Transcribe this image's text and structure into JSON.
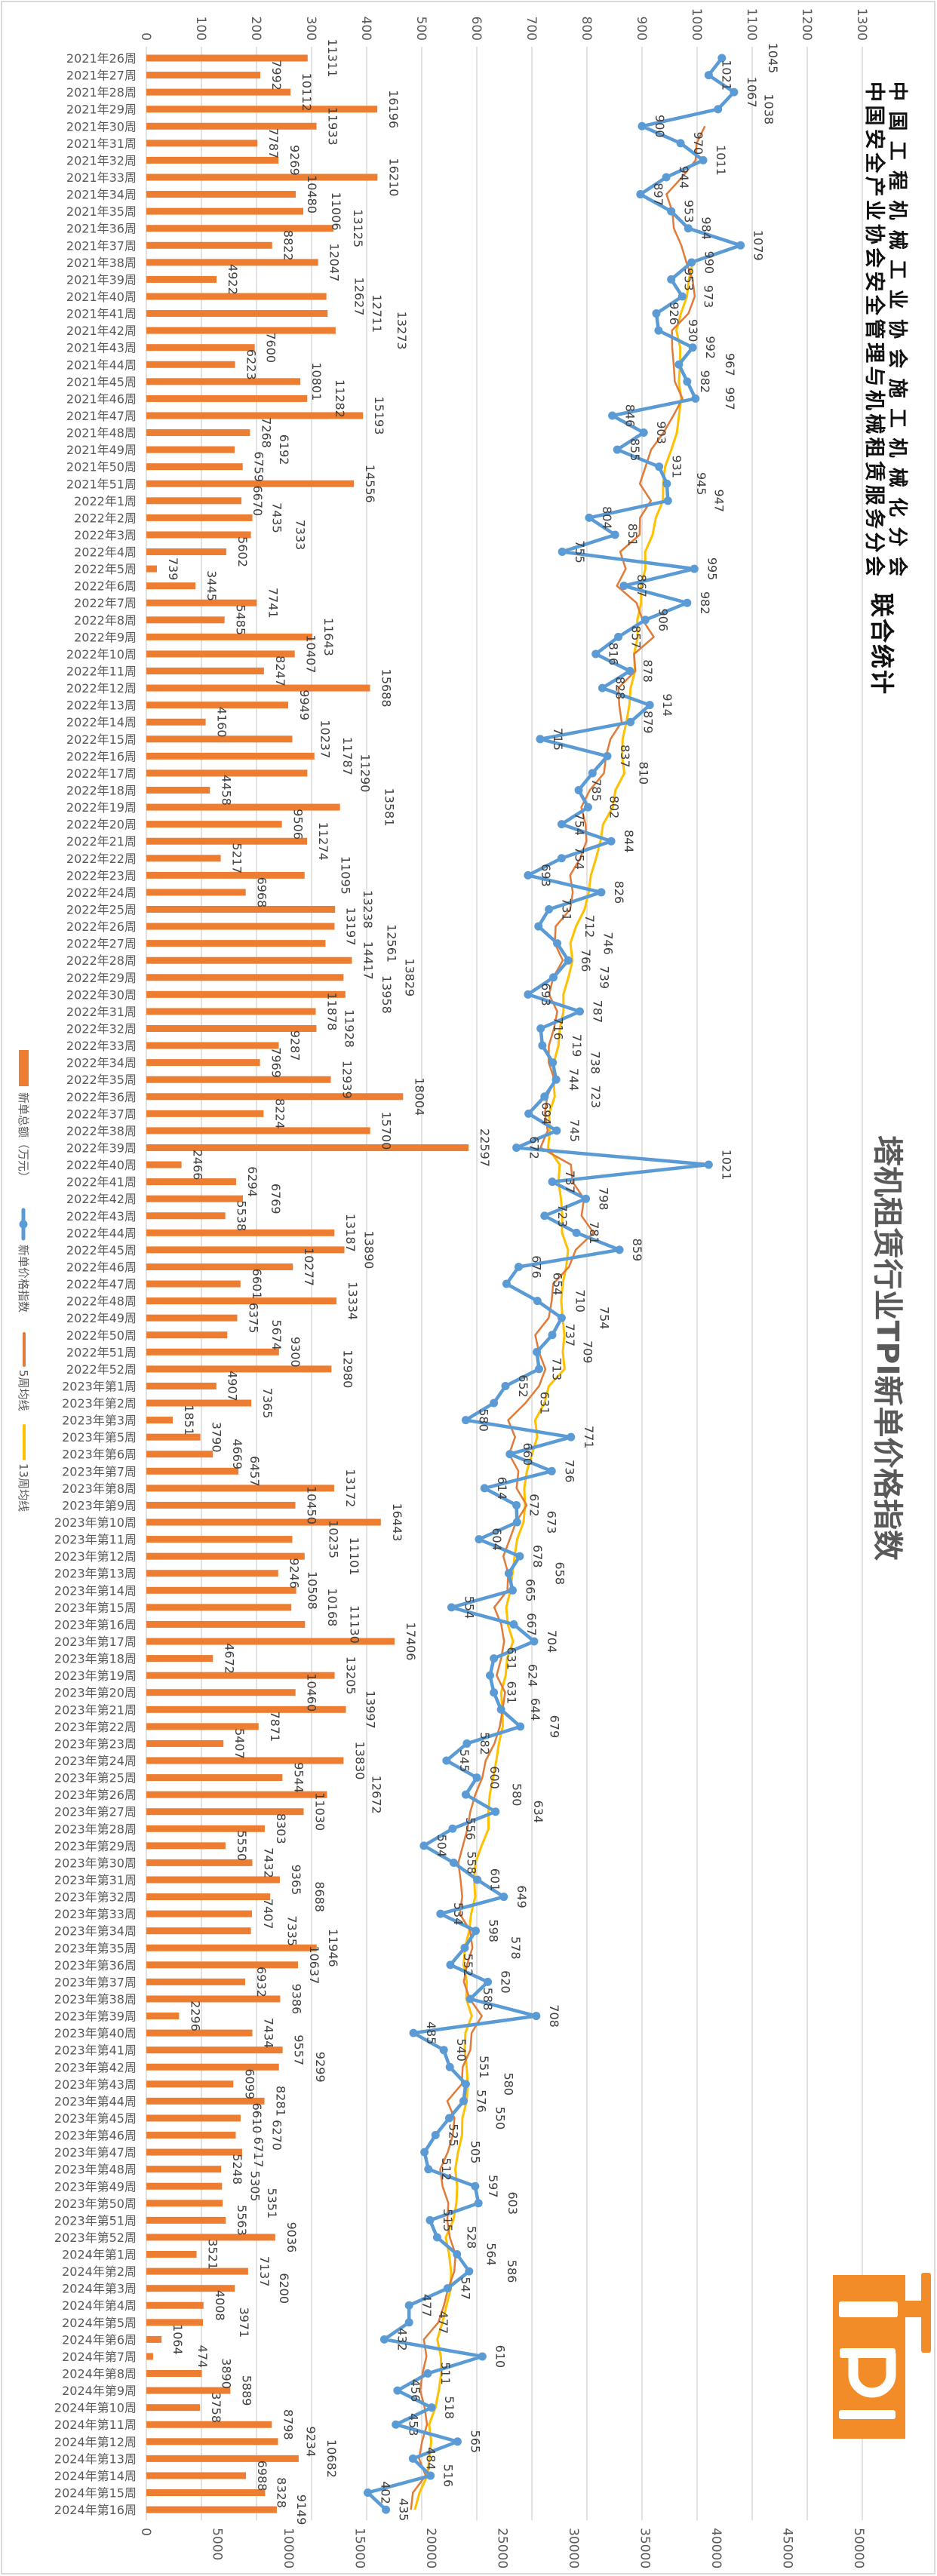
{
  "header": {
    "org_line_1": "中国工程机械工业协会施工机械化分会",
    "org_line_2": "中国安全产业协会安全管理与机械租赁服务分会",
    "joint_label": "联合统计"
  },
  "logo": {
    "text": "TPI",
    "color": "#F28C28"
  },
  "chart_data": {
    "type": "bar+line",
    "orientation": "rotated 90° clockwise",
    "title": "塔机租赁行业TPI新单价格指数",
    "grid": true,
    "legend_position": "left",
    "index_axis": {
      "range": [
        0,
        1300
      ],
      "ticks": [
        0,
        100,
        200,
        300,
        400,
        500,
        600,
        700,
        800,
        900,
        1000,
        1100,
        1200,
        1300
      ]
    },
    "amount_axis": {
      "range": [
        0,
        50000
      ],
      "ticks": [
        0,
        5000,
        10000,
        15000,
        20000,
        25000,
        30000,
        35000,
        40000,
        45000,
        50000
      ]
    },
    "categories": [
      "2021年26周",
      "2021年27周",
      "2021年28周",
      "2021年29周",
      "2021年30周",
      "2021年31周",
      "2021年32周",
      "2021年33周",
      "2021年34周",
      "2021年35周",
      "2021年36周",
      "2021年37周",
      "2021年38周",
      "2021年39周",
      "2021年40周",
      "2021年41周",
      "2021年42周",
      "2021年43周",
      "2021年44周",
      "2021年45周",
      "2021年46周",
      "2021年47周",
      "2021年48周",
      "2021年49周",
      "2021年50周",
      "2021年51周",
      "2022年1周",
      "2022年2周",
      "2022年3周",
      "2022年4周",
      "2022年5周",
      "2022年6周",
      "2022年7周",
      "2022年8周",
      "2022年9周",
      "2022年10周",
      "2022年11周",
      "2022年12周",
      "2022年13周",
      "2022年14周",
      "2022年15周",
      "2022年16周",
      "2022年17周",
      "2022年18周",
      "2022年19周",
      "2022年20周",
      "2022年21周",
      "2022年22周",
      "2022年23周",
      "2022年24周",
      "2022年25周",
      "2022年26周",
      "2022年27周",
      "2022年28周",
      "2022年29周",
      "2022年30周",
      "2022年31周",
      "2022年32周",
      "2022年33周",
      "2022年34周",
      "2022年35周",
      "2022年36周",
      "2022年37周",
      "2022年38周",
      "2022年39周",
      "2022年40周",
      "2022年41周",
      "2022年42周",
      "2022年43周",
      "2022年44周",
      "2022年45周",
      "2022年46周",
      "2022年47周",
      "2022年48周",
      "2022年49周",
      "2022年50周",
      "2022年51周",
      "2022年52周",
      "2023年第1周",
      "2023年第2周",
      "2023年第3周",
      "2023年第5周",
      "2023年第6周",
      "2023年第7周",
      "2023年第8周",
      "2023年第9周",
      "2023年第10周",
      "2023年第11周",
      "2023年第12周",
      "2023年第13周",
      "2023年第14周",
      "2023年第15周",
      "2023年第16周",
      "2023年第17周",
      "2023年第18周",
      "2023年第19周",
      "2023年第20周",
      "2023年第21周",
      "2023年第22周",
      "2023年第23周",
      "2023年第24周",
      "2023年第25周",
      "2023年第26周",
      "2023年第27周",
      "2023年第28周",
      "2023年第29周",
      "2023年第30周",
      "2023年第31周",
      "2023年第32周",
      "2023年第33周",
      "2023年第34周",
      "2023年第35周",
      "2023年第36周",
      "2023年第37周",
      "2023年第38周",
      "2023年第39周",
      "2023年第40周",
      "2023年第41周",
      "2023年第42周",
      "2023年第43周",
      "2023年第44周",
      "2023年第45周",
      "2023年第46周",
      "2023年第47周",
      "2023年第48周",
      "2023年第49周",
      "2023年第50周",
      "2023年第51周",
      "2023年第52周",
      "2024年第1周",
      "2024年第2周",
      "2024年第3周",
      "2024年第4周",
      "2024年第5周",
      "2024年第6周",
      "2024年第7周",
      "2024年第8周",
      "2024年第9周",
      "2024年第10周",
      "2024年第11周",
      "2024年第12周",
      "2024年第13周",
      "2024年第14周",
      "2024年第15周",
      "2024年第16周"
    ],
    "series": [
      {
        "name": "新单总额（万元）",
        "type": "bar",
        "axis": "amount",
        "color": "#ED7D31",
        "values": [
          11311,
          7992,
          10112,
          16196,
          11933,
          7787,
          9269,
          16210,
          10480,
          11006,
          13125,
          8822,
          12047,
          4922,
          12627,
          12711,
          13273,
          7600,
          6223,
          10801,
          11282,
          15193,
          7268,
          6192,
          6759,
          14556,
          6670,
          7435,
          7333,
          5602,
          739,
          3445,
          7741,
          5485,
          11643,
          10407,
          8247,
          15688,
          9949,
          4160,
          10237,
          11787,
          11290,
          4458,
          13581,
          9506,
          11274,
          5217,
          11095,
          6968,
          13238,
          13197,
          12561,
          14417,
          13829,
          13958,
          11878,
          11928,
          9287,
          7969,
          12939,
          18004,
          8224,
          15700,
          22597,
          2466,
          6294,
          6769,
          5538,
          13187,
          13890,
          10277,
          6601,
          13334,
          6375,
          5674,
          9300,
          12980,
          4907,
          7365,
          1851,
          3790,
          4669,
          6457,
          13172,
          10450,
          16443,
          10235,
          11101,
          9246,
          10508,
          10168,
          11130,
          17406,
          4672,
          13205,
          10460,
          13997,
          7871,
          5407,
          13830,
          9544,
          12672,
          11030,
          8303,
          5550,
          7432,
          9365,
          8688,
          7407,
          7335,
          11946,
          10637,
          6932,
          9386,
          2296,
          7434,
          9557,
          9299,
          6099,
          8281,
          6610,
          6270,
          6717,
          5248,
          5305,
          5351,
          5563,
          9036,
          3521,
          7137,
          6200,
          4008,
          3971,
          1064,
          474,
          3890,
          5889,
          3758,
          8798,
          9234,
          10682,
          6988,
          8328,
          9149
        ]
      },
      {
        "name": "新单价格指数",
        "type": "line",
        "axis": "index",
        "color": "#5B9BD5",
        "marker": "circle",
        "values": [
          1045,
          1021,
          1067,
          1038,
          900,
          970,
          1011,
          944,
          897,
          953,
          984,
          1079,
          990,
          953,
          973,
          926,
          930,
          992,
          967,
          982,
          997,
          846,
          903,
          855,
          931,
          945,
          947,
          804,
          851,
          755,
          995,
          867,
          982,
          906,
          857,
          816,
          878,
          828,
          914,
          879,
          715,
          837,
          810,
          785,
          802,
          754,
          844,
          754,
          693,
          826,
          731,
          712,
          746,
          766,
          739,
          693,
          787,
          716,
          719,
          738,
          744,
          723,
          694,
          745,
          672,
          1021,
          737,
          798,
          723,
          781,
          859,
          676,
          654,
          710,
          754,
          737,
          709,
          713,
          652,
          631,
          580,
          771,
          660,
          736,
          614,
          672,
          673,
          604,
          678,
          658,
          665,
          554,
          667,
          704,
          631,
          624,
          631,
          644,
          679,
          582,
          545,
          600,
          580,
          634,
          556,
          504,
          558,
          601,
          649,
          534,
          598,
          578,
          552,
          620,
          588,
          708,
          485,
          540,
          551,
          580,
          576,
          550,
          525,
          505,
          512,
          597,
          603,
          515,
          528,
          564,
          586,
          547,
          477,
          477,
          432,
          610,
          511,
          456,
          518,
          453,
          565,
          484,
          516,
          402,
          435
        ]
      },
      {
        "name": "5周均线",
        "type": "line",
        "axis": "index",
        "color": "#E07B39",
        "moving_average_of": "新单价格指数",
        "window": 5
      },
      {
        "name": "13周均线",
        "type": "line",
        "axis": "index",
        "color": "#FFC000",
        "moving_average_of": "新单价格指数",
        "window": 13
      }
    ]
  }
}
